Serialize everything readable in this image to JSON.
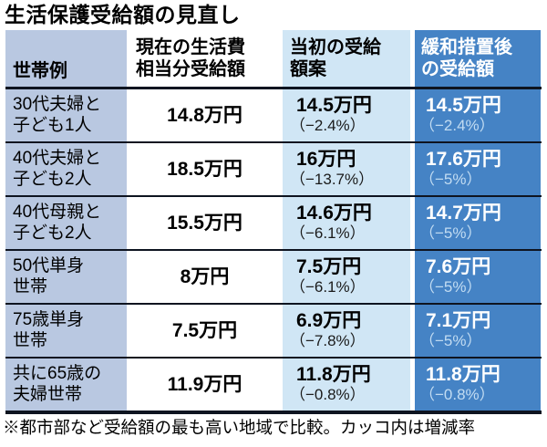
{
  "title": "生活保護受給額の見直し",
  "table": {
    "headers": [
      {
        "label": "世帯例"
      },
      {
        "label": "現在の生活費\n相当分受給額"
      },
      {
        "label": "当初の受給\n額案"
      },
      {
        "label": "緩和措置後\nの受給額"
      }
    ],
    "rows": [
      {
        "household": "30代夫婦と\n子ども1人",
        "current": "14.8万円",
        "initial_amount": "14.5万円",
        "initial_pct": "（−2.4%）",
        "relaxed_amount": "14.5万円",
        "relaxed_pct": "（−2.4%）"
      },
      {
        "household": "40代夫婦と\n子ども2人",
        "current": "18.5万円",
        "initial_amount": "16万円",
        "initial_pct": "（−13.7%）",
        "relaxed_amount": "17.6万円",
        "relaxed_pct": "（−5%）"
      },
      {
        "household": "40代母親と\n子ども2人",
        "current": "15.5万円",
        "initial_amount": "14.6万円",
        "initial_pct": "（−6.1%）",
        "relaxed_amount": "14.7万円",
        "relaxed_pct": "（−5%）"
      },
      {
        "household": "50代単身\n世帯",
        "current": "8万円",
        "initial_amount": "7.5万円",
        "initial_pct": "（−6.1%）",
        "relaxed_amount": "7.6万円",
        "relaxed_pct": "（−5%）"
      },
      {
        "household": "75歳単身\n世帯",
        "current": "7.5万円",
        "initial_amount": "6.9万円",
        "initial_pct": "（−7.8%）",
        "relaxed_amount": "7.1万円",
        "relaxed_pct": "（−5%）"
      },
      {
        "household": "共に65歳の\n夫婦世帯",
        "current": "11.9万円",
        "initial_amount": "11.8万円",
        "initial_pct": "（−0.8%）",
        "relaxed_amount": "11.8万円",
        "relaxed_pct": "（−0.8%）"
      }
    ]
  },
  "footnote": "※都市部など受給額の最も高い地域で比較。カッコ内は増減率",
  "colors": {
    "household_col_bg": "#b9c8e1",
    "current_col_bg": "#ffffff",
    "initial_col_bg": "#d0e6f5",
    "relaxed_col_bg": "#4583c5",
    "relaxed_amount_text": "#ffffff",
    "relaxed_pct_text": "#c2dcf2",
    "rule_color": "#0e1420"
  },
  "chart_data": {
    "type": "table",
    "title": "生活保護受給額の見直し",
    "columns": [
      "世帯例",
      "現在の生活費相当分受給額",
      "当初の受給額案",
      "緩和措置後の受給額"
    ],
    "rows": [
      [
        "30代夫婦と子ども1人",
        "14.8万円",
        "14.5万円（−2.4%）",
        "14.5万円（−2.4%）"
      ],
      [
        "40代夫婦と子ども2人",
        "18.5万円",
        "16万円（−13.7%）",
        "17.6万円（−5%）"
      ],
      [
        "40代母親と子ども2人",
        "15.5万円",
        "14.6万円（−6.1%）",
        "14.7万円（−5%）"
      ],
      [
        "50代単身世帯",
        "8万円",
        "7.5万円（−6.1%）",
        "7.6万円（−5%）"
      ],
      [
        "75歳単身世帯",
        "7.5万円",
        "6.9万円（−7.8%）",
        "7.1万円（−5%）"
      ],
      [
        "共に65歳の夫婦世帯",
        "11.9万円",
        "11.8万円（−0.8%）",
        "11.8万円（−0.8%）"
      ]
    ],
    "values_man_yen": {
      "current": [
        14.8,
        18.5,
        15.5,
        8,
        7.5,
        11.9
      ],
      "initial": [
        14.5,
        16,
        14.6,
        7.5,
        6.9,
        11.8
      ],
      "relaxed": [
        14.5,
        17.6,
        14.7,
        7.6,
        7.1,
        11.8
      ]
    },
    "pct_change": {
      "initial": [
        -2.4,
        -13.7,
        -6.1,
        -6.1,
        -7.8,
        -0.8
      ],
      "relaxed": [
        -2.4,
        -5,
        -5,
        -5,
        -5,
        -0.8
      ]
    },
    "footnote": "※都市部など受給額の最も高い地域で比較。カッコ内は増減率"
  }
}
